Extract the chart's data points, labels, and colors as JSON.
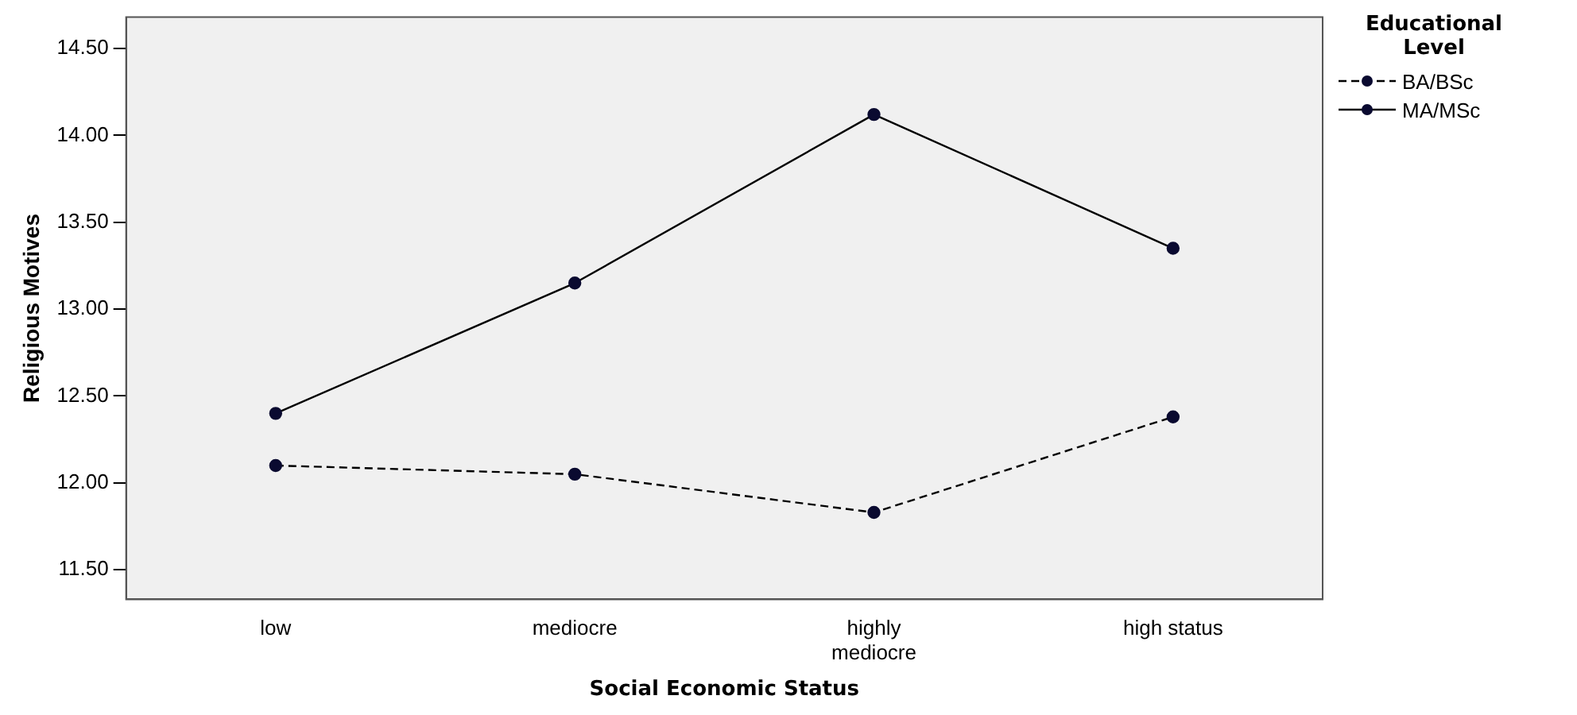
{
  "chart_data": {
    "type": "line",
    "xlabel": "Social Economic Status",
    "ylabel": "Religious Motives",
    "legend_title": "Educational Level",
    "legend": "right",
    "marker": "circle",
    "grid": false,
    "categories": [
      "low",
      "mediocre",
      "highly mediocre",
      "high status"
    ],
    "series": [
      {
        "name": "BA/BSc",
        "color": "#000000",
        "line_style": "dashed",
        "values": [
          12.1,
          12.05,
          11.83,
          12.38
        ]
      },
      {
        "name": "MA/MSc",
        "color": "#000000",
        "line_style": "solid",
        "values": [
          12.4,
          13.15,
          14.12,
          13.35
        ]
      }
    ],
    "ylim": [
      11.33,
      14.68
    ],
    "yticks": [
      {
        "value": 11.5,
        "label": "11.50"
      },
      {
        "value": 12,
        "label": "12.00"
      },
      {
        "value": 12.5,
        "label": "12.50"
      },
      {
        "value": 13,
        "label": "13.00"
      },
      {
        "value": 13.5,
        "label": "13.50"
      },
      {
        "value": 14,
        "label": "14.00"
      },
      {
        "value": 14.5,
        "label": "14.50"
      }
    ]
  }
}
